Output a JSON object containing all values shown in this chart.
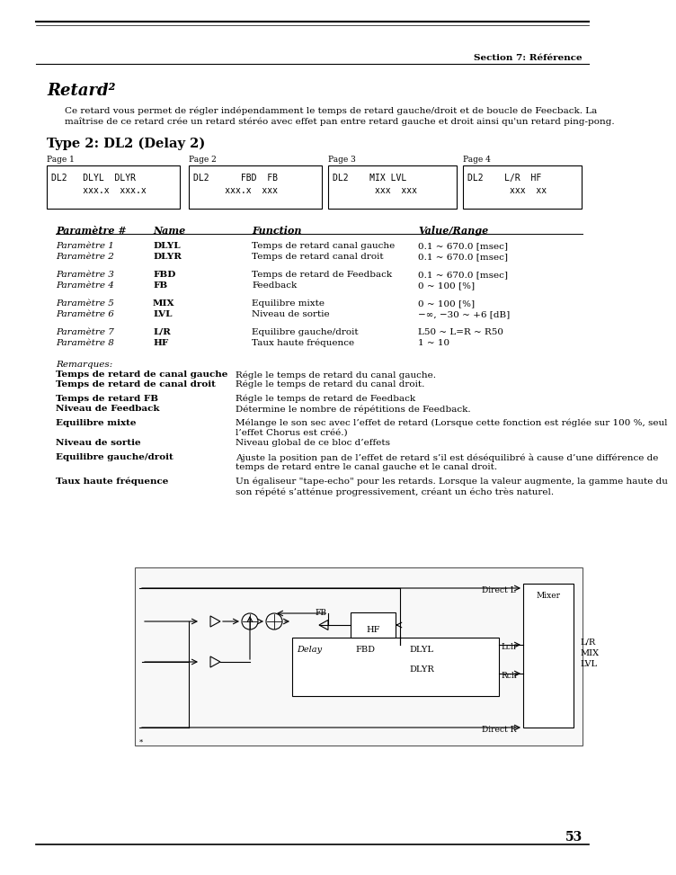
{
  "bg_color": "#ffffff",
  "section_label": "Section 7: Référence",
  "title": "Retard²",
  "intro_line1": "Ce retard vous permet de régler indépendamment le temps de retard gauche/droit et de boucle de Feecback. La",
  "intro_line2": "maîtrise de ce retard crée un retard stéréo avec effet pan entre retard gauche et droit ainsi qu'un retard ping-pong.",
  "subtitle": "Type 2: DL2 (Delay 2)",
  "page_labels": [
    "Page 1",
    "Page 2",
    "Page 3",
    "Page 4"
  ],
  "box1_line1": "DL2   DLYL  DLYR",
  "box1_line2": "      xxx.x  xxx.x",
  "box2_line1": "DL2      FBD  FB",
  "box2_line2": "      xxx.x  xxx",
  "box3_line1": "DL2    MIX LVL",
  "box3_line2": "        xxx  xxx",
  "box4_line1": "DL2    L/R  HF",
  "box4_line2": "        xxx  xx",
  "col_param": 52,
  "col_name": 160,
  "col_func": 270,
  "col_val": 455,
  "params": [
    [
      "Paramètre 1",
      "DLYL",
      "Temps de retard canal gauche",
      "0.1 ~ 670.0 [msec]"
    ],
    [
      "Paramètre 2",
      "DLYR",
      "Temps de retard canal droit",
      "0.1 ~ 670.0 [msec]"
    ],
    [
      "Paramètre 3",
      "FBD",
      "Temps de retard de Feedback",
      "0.1 ~ 670.0 [msec]"
    ],
    [
      "Paramètre 4",
      "FB",
      "Feedback",
      "0 ~ 100 [%]"
    ],
    [
      "Paramètre 5",
      "MIX",
      "Equilibre mixte",
      "0 ~ 100 [%]"
    ],
    [
      "Paramètre 6",
      "LVL",
      "Niveau de sortie",
      "−∞, −30 ~ +6 [dB]"
    ],
    [
      "Paramètre 7",
      "L/R",
      "Equilibre gauche/droit",
      "L50 ~ L=R ~ R50"
    ],
    [
      "Paramètre 8",
      "HF",
      "Taux haute fréquence",
      "1 ~ 10"
    ]
  ],
  "remarks": [
    {
      "bold": "Temps de retard de canal gauche",
      "text": "Régle le temps de retard du canal gauche."
    },
    {
      "bold": "Temps de retard de canal droit",
      "text": "Régle le temps de retard du canal droit."
    },
    {
      "bold": "Temps de retard FB",
      "text": "Régle le temps de retard de Feedback"
    },
    {
      "bold": "Niveau de Feedback",
      "text": "Détermine le nombre de répétitions de Feedback."
    },
    {
      "bold": "Equilibre mixte",
      "text": "Mélange le son sec avec l’effet de retard (Lorsque cette fonction est réglée sur 100 %, seul"
    },
    {
      "bold": "",
      "text": "l’effet Chorus est créé.)"
    },
    {
      "bold": "Niveau de sortie",
      "text": "Niveau global de ce bloc d’effets"
    },
    {
      "bold": "Equilibre gauche/droit",
      "text": "Ajuste la position pan de l’effet de retard s’il est déséquilibré à cause d’une différence de"
    },
    {
      "bold": "",
      "text": "temps de retard entre le canal gauche et le canal droit."
    },
    {
      "bold": "Taux haute fréquence",
      "text": "Un égaliseur \"tape-echo\" pour les retards. Lorsque la valeur augmente, la gamme haute du"
    },
    {
      "bold": "",
      "text": "son répété s’atténue progressivement, créant un écho très naturel."
    }
  ],
  "page_number": "53"
}
